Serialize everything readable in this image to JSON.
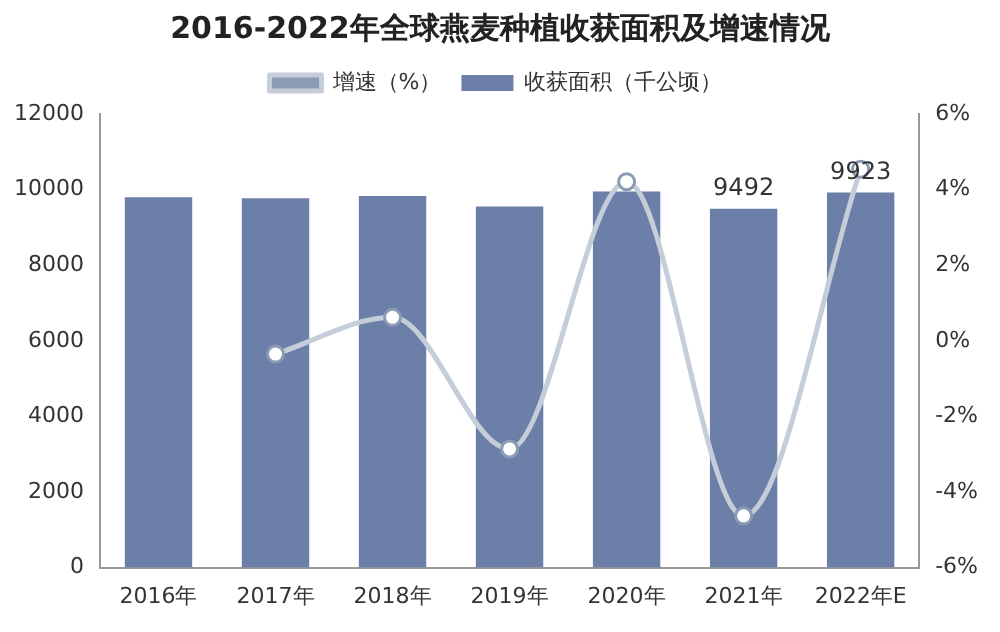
{
  "chart_data": {
    "type": "bar",
    "title": "2016-2022年全球燕麦种植收获面积及增速情况",
    "categories": [
      "2016年",
      "2017年",
      "2018年",
      "2019年",
      "2020年",
      "2021年",
      "2022年E"
    ],
    "series": [
      {
        "name": "收获面积（千公顷）",
        "color": "#6b7fa8",
        "values": [
          9800,
          9770,
          9830,
          9550,
          9950,
          9492,
          9923
        ],
        "value_labels": [
          null,
          null,
          null,
          null,
          null,
          "9492",
          "9923"
        ]
      },
      {
        "name": "增速（%）",
        "type": "line",
        "axis": "y2",
        "color": "#c5cdd9",
        "values": [
          null,
          -0.35,
          0.62,
          -2.86,
          4.21,
          -4.63,
          4.54
        ]
      }
    ],
    "ylim": [
      0,
      12000
    ],
    "yticks": [
      0,
      2000,
      4000,
      6000,
      8000,
      10000,
      12000
    ],
    "y2lim": [
      -6,
      6
    ],
    "y2ticks": [
      {
        "value": -6,
        "label": "-6%"
      },
      {
        "value": -4,
        "label": "-4%"
      },
      {
        "value": -2,
        "label": "-2%"
      },
      {
        "value": 0,
        "label": "0%"
      },
      {
        "value": 2,
        "label": "2%"
      },
      {
        "value": 4,
        "label": "4%"
      },
      {
        "value": 6,
        "label": "6%"
      }
    ],
    "grid": false,
    "legend": "top",
    "marker": "circle",
    "line_style": "solid"
  }
}
